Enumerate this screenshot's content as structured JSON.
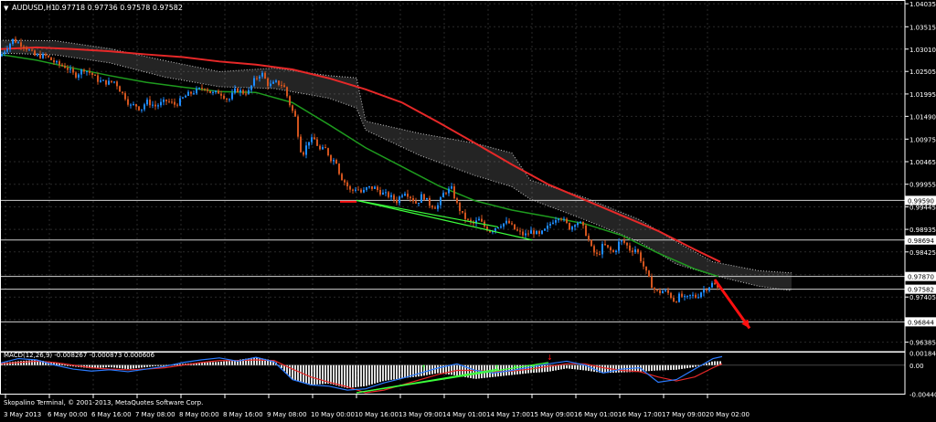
{
  "header": {
    "symbol": "AUDUSD,H1",
    "ohlc": "0.97718 0.97736 0.97578 0.97582"
  },
  "indicator_header": "MACD(12,26,9) -0.008267 -0.000873 0.000606",
  "copyright": "Skopalino Terminal, © 2001-2013, MetaQuotes Software Corp.",
  "colors": {
    "background": "#000000",
    "grid": "#2a2a2a",
    "axis_text": "#ffffff",
    "bull_candle": "#1e8cff",
    "bear_candle": "#d2541e",
    "ma_slow": "#e62828",
    "ma_fast": "#1e9b1e",
    "cloud": "#c8c8c8",
    "trendline": "#3cff3c",
    "forecast_arrow": "#ff1010",
    "macd_hist": "#dcdcdc",
    "macd_line": "#2b7bff",
    "signal_line": "#e62828"
  },
  "chart_data": [
    {
      "type": "candlestick",
      "title": "AUDUSD,H1",
      "y_ticks": [
        "1.04035",
        "1.03515",
        "1.03010",
        "1.02505",
        "1.01995",
        "1.01490",
        "1.00975",
        "1.00465",
        "0.99955",
        "0.99445",
        "0.98935",
        "0.98425",
        "0.97910",
        "0.97405",
        "0.96895",
        "0.96385"
      ],
      "ylim": [
        0.9617,
        1.0412
      ],
      "x_ticks": [
        "3 May 2013",
        "6 May 00:00",
        "6 May 16:00",
        "7 May 08:00",
        "8 May 00:00",
        "8 May 16:00",
        "9 May 08:00",
        "10 May 00:00",
        "10 May 16:00",
        "13 May 09:00",
        "14 May 01:00",
        "14 May 17:00",
        "15 May 09:00",
        "16 May 01:00",
        "16 May 17:00",
        "17 May 09:00",
        "20 May 02:00"
      ],
      "price_labels": [
        {
          "label": "0.99590",
          "value": 0.9959
        },
        {
          "label": "0.98694",
          "value": 0.98694
        },
        {
          "label": "0.97870",
          "value": 0.9787
        },
        {
          "label": "0.97582",
          "value": 0.97582
        },
        {
          "label": "0.96844",
          "value": 0.96844
        }
      ],
      "close_path": [
        [
          0,
          1.0285
        ],
        [
          14,
          1.0322
        ],
        [
          26,
          1.0309
        ],
        [
          38,
          1.0286
        ],
        [
          50,
          1.0285
        ],
        [
          62,
          1.0268
        ],
        [
          72,
          1.0261
        ],
        [
          82,
          1.0241
        ],
        [
          92,
          1.0256
        ],
        [
          100,
          1.0245
        ],
        [
          108,
          1.0229
        ],
        [
          118,
          1.0225
        ],
        [
          126,
          1.0228
        ],
        [
          132,
          1.0205
        ],
        [
          138,
          1.019
        ],
        [
          142,
          1.0172
        ],
        [
          148,
          1.0175
        ],
        [
          154,
          1.0164
        ],
        [
          160,
          1.0183
        ],
        [
          170,
          1.0172
        ],
        [
          182,
          1.0184
        ],
        [
          192,
          1.0175
        ],
        [
          204,
          1.0197
        ],
        [
          214,
          1.0206
        ],
        [
          224,
          1.0215
        ],
        [
          232,
          1.02
        ],
        [
          240,
          1.0204
        ],
        [
          250,
          1.0185
        ],
        [
          258,
          1.021
        ],
        [
          266,
          1.0203
        ],
        [
          272,
          1.0205
        ],
        [
          278,
          1.023
        ],
        [
          286,
          1.0248
        ],
        [
          294,
          1.0218
        ],
        [
          302,
          1.0225
        ],
        [
          310,
          1.022
        ],
        [
          318,
          1.017
        ],
        [
          324,
          1.0142
        ],
        [
          328,
          1.0076
        ],
        [
          332,
          1.0067
        ],
        [
          338,
          1.0095
        ],
        [
          344,
          1.0096
        ],
        [
          350,
          1.0073
        ],
        [
          356,
          1.0075
        ],
        [
          362,
          1.0053
        ],
        [
          368,
          1.0047
        ],
        [
          372,
          1.0015
        ],
        [
          378,
          0.9998
        ],
        [
          384,
          0.9978
        ],
        [
          390,
          0.9988
        ],
        [
          396,
          0.9975
        ],
        [
          402,
          0.9988
        ],
        [
          410,
          0.9987
        ],
        [
          418,
          0.9975
        ],
        [
          426,
          0.9969
        ],
        [
          434,
          0.9957
        ],
        [
          442,
          0.9981
        ],
        [
          450,
          0.9965
        ],
        [
          456,
          0.9951
        ],
        [
          462,
          0.9972
        ],
        [
          470,
          0.995
        ],
        [
          478,
          0.9943
        ],
        [
          486,
          0.9978
        ],
        [
          494,
          0.9985
        ],
        [
          500,
          0.995
        ],
        [
          506,
          0.9926
        ],
        [
          512,
          0.9912
        ],
        [
          518,
          0.9906
        ],
        [
          524,
          0.9915
        ],
        [
          530,
          0.99
        ],
        [
          536,
          0.989
        ],
        [
          542,
          0.9898
        ],
        [
          548,
          0.9905
        ],
        [
          556,
          0.991
        ],
        [
          562,
          0.9895
        ],
        [
          568,
          0.9886
        ],
        [
          574,
          0.988
        ],
        [
          582,
          0.989
        ],
        [
          590,
          0.988
        ],
        [
          598,
          0.9895
        ],
        [
          604,
          0.9912
        ],
        [
          612,
          0.9925
        ],
        [
          618,
          0.991
        ],
        [
          624,
          0.9895
        ],
        [
          630,
          0.9912
        ],
        [
          636,
          0.9905
        ],
        [
          642,
          0.988
        ],
        [
          648,
          0.9845
        ],
        [
          654,
          0.9833
        ],
        [
          660,
          0.986
        ],
        [
          666,
          0.9848
        ],
        [
          672,
          0.984
        ],
        [
          678,
          0.9868
        ],
        [
          684,
          0.9862
        ],
        [
          690,
          0.9845
        ],
        [
          696,
          0.985
        ],
        [
          702,
          0.982
        ],
        [
          708,
          0.979
        ],
        [
          714,
          0.9762
        ],
        [
          720,
          0.975
        ],
        [
          726,
          0.9755
        ],
        [
          732,
          0.9748
        ],
        [
          738,
          0.973
        ],
        [
          744,
          0.9745
        ],
        [
          750,
          0.9735
        ],
        [
          756,
          0.9745
        ],
        [
          762,
          0.974
        ],
        [
          768,
          0.9755
        ],
        [
          774,
          0.9762
        ],
        [
          780,
          0.9772
        ],
        [
          786,
          0.9758
        ]
      ],
      "ma_slow": [
        [
          0,
          1.0301
        ],
        [
          40,
          1.0305
        ],
        [
          80,
          1.0301
        ],
        [
          120,
          1.0296
        ],
        [
          160,
          1.0289
        ],
        [
          200,
          1.0283
        ],
        [
          240,
          1.0273
        ],
        [
          280,
          1.0266
        ],
        [
          320,
          1.0255
        ],
        [
          360,
          1.0235
        ],
        [
          400,
          1.021
        ],
        [
          440,
          1.018
        ],
        [
          480,
          1.0135
        ],
        [
          520,
          1.0088
        ],
        [
          560,
          1.004
        ],
        [
          600,
          0.9995
        ],
        [
          640,
          0.996
        ],
        [
          680,
          0.9925
        ],
        [
          720,
          0.989
        ],
        [
          760,
          0.9848
        ],
        [
          788,
          0.982
        ]
      ],
      "ma_fast": [
        [
          0,
          1.0289
        ],
        [
          40,
          1.0276
        ],
        [
          80,
          1.0258
        ],
        [
          120,
          1.0241
        ],
        [
          160,
          1.0226
        ],
        [
          200,
          1.0215
        ],
        [
          240,
          1.0205
        ],
        [
          280,
          1.0203
        ],
        [
          320,
          1.018
        ],
        [
          360,
          1.013
        ],
        [
          400,
          1.0078
        ],
        [
          440,
          1.0035
        ],
        [
          480,
          0.9992
        ],
        [
          520,
          0.9958
        ],
        [
          560,
          0.9937
        ],
        [
          600,
          0.9922
        ],
        [
          640,
          0.9906
        ],
        [
          680,
          0.988
        ],
        [
          720,
          0.984
        ],
        [
          760,
          0.9804
        ],
        [
          786,
          0.9787
        ]
      ],
      "cloud_upper": [
        [
          0,
          1.0321
        ],
        [
          60,
          1.032
        ],
        [
          120,
          1.0302
        ],
        [
          180,
          1.0275
        ],
        [
          240,
          1.025
        ],
        [
          300,
          1.0258
        ],
        [
          360,
          1.0241
        ],
        [
          390,
          1.0236
        ],
        [
          400,
          1.0138
        ],
        [
          460,
          1.011
        ],
        [
          520,
          1.0088
        ],
        [
          560,
          1.0066
        ],
        [
          580,
          1.0005
        ],
        [
          640,
          0.9965
        ],
        [
          700,
          0.9915
        ],
        [
          740,
          0.9865
        ],
        [
          780,
          0.982
        ],
        [
          830,
          0.98
        ],
        [
          866,
          0.9795
        ]
      ],
      "cloud_lower": [
        [
          0,
          1.0292
        ],
        [
          60,
          1.0288
        ],
        [
          120,
          1.027
        ],
        [
          180,
          1.0238
        ],
        [
          240,
          1.0216
        ],
        [
          300,
          1.0212
        ],
        [
          360,
          1.019
        ],
        [
          390,
          1.0168
        ],
        [
          400,
          1.0118
        ],
        [
          460,
          1.006
        ],
        [
          520,
          1.0015
        ],
        [
          560,
          0.999
        ],
        [
          580,
          0.9962
        ],
        [
          640,
          0.9915
        ],
        [
          700,
          0.9865
        ],
        [
          740,
          0.9815
        ],
        [
          780,
          0.979
        ],
        [
          830,
          0.9765
        ],
        [
          866,
          0.9755
        ]
      ],
      "trendlines": [
        [
          [
            390,
            0.9959
          ],
          [
            545,
            0.9899
          ]
        ],
        [
          [
            390,
            0.9959
          ],
          [
            582,
            0.98694
          ]
        ]
      ],
      "forecast_arrow": [
        [
          782,
          0.978
        ],
        [
          820,
          0.967
        ]
      ]
    },
    {
      "type": "macd",
      "title": "MACD(12,26,9)",
      "y_ticks": [
        "0.001846",
        "0.00",
        "-0.004405"
      ],
      "ylim": [
        -0.00448,
        0.00205
      ],
      "histogram": [
        [
          0,
          0.0003
        ],
        [
          20,
          0.0006
        ],
        [
          40,
          0.0008
        ],
        [
          60,
          0.0004
        ],
        [
          80,
          -0.0002
        ],
        [
          100,
          -0.0005
        ],
        [
          120,
          -0.0003
        ],
        [
          140,
          -0.0006
        ],
        [
          160,
          -0.0003
        ],
        [
          180,
          0.0
        ],
        [
          200,
          0.0002
        ],
        [
          220,
          0.0004
        ],
        [
          240,
          0.0005
        ],
        [
          260,
          0.0008
        ],
        [
          280,
          0.0012
        ],
        [
          300,
          0.0007
        ],
        [
          320,
          -0.0022
        ],
        [
          340,
          -0.003
        ],
        [
          360,
          -0.0028
        ],
        [
          380,
          -0.0035
        ],
        [
          400,
          -0.0032
        ],
        [
          420,
          -0.0024
        ],
        [
          440,
          -0.002
        ],
        [
          460,
          -0.0017
        ],
        [
          480,
          -0.0012
        ],
        [
          500,
          -0.0016
        ],
        [
          520,
          -0.0021
        ],
        [
          540,
          -0.0018
        ],
        [
          560,
          -0.0015
        ],
        [
          580,
          -0.0012
        ],
        [
          600,
          -0.001
        ],
        [
          620,
          -0.0005
        ],
        [
          640,
          -0.0008
        ],
        [
          660,
          -0.0012
        ],
        [
          680,
          -0.0011
        ],
        [
          700,
          -0.001
        ],
        [
          720,
          -0.0008
        ],
        [
          740,
          -0.0007
        ],
        [
          760,
          -0.0003
        ],
        [
          780,
          0.0006
        ],
        [
          790,
          0.0006
        ]
      ],
      "macd_line": [
        [
          0,
          0.0003
        ],
        [
          20,
          0.001
        ],
        [
          40,
          0.0008
        ],
        [
          60,
          0.0
        ],
        [
          80,
          -0.0006
        ],
        [
          100,
          -0.0009
        ],
        [
          120,
          -0.0007
        ],
        [
          140,
          -0.001
        ],
        [
          160,
          -0.0006
        ],
        [
          180,
          -0.0002
        ],
        [
          200,
          0.0004
        ],
        [
          220,
          0.0008
        ],
        [
          240,
          0.0011
        ],
        [
          260,
          0.0006
        ],
        [
          280,
          0.0012
        ],
        [
          300,
          0.0005
        ],
        [
          320,
          -0.0022
        ],
        [
          340,
          -0.003
        ],
        [
          360,
          -0.0032
        ],
        [
          380,
          -0.0038
        ],
        [
          400,
          -0.0036
        ],
        [
          420,
          -0.0027
        ],
        [
          440,
          -0.002
        ],
        [
          460,
          -0.0012
        ],
        [
          480,
          -0.0004
        ],
        [
          500,
          0.0002
        ],
        [
          520,
          -0.0008
        ],
        [
          540,
          -0.0012
        ],
        [
          560,
          -0.0008
        ],
        [
          580,
          -0.0003
        ],
        [
          600,
          0.0002
        ],
        [
          620,
          0.0006
        ],
        [
          640,
          0.0
        ],
        [
          660,
          -0.0012
        ],
        [
          680,
          -0.0006
        ],
        [
          700,
          -0.0004
        ],
        [
          720,
          -0.0026
        ],
        [
          740,
          -0.0022
        ],
        [
          760,
          -0.0006
        ],
        [
          780,
          0.001
        ],
        [
          790,
          0.0013
        ]
      ],
      "signal_line": [
        [
          0,
          0.0002
        ],
        [
          20,
          0.0004
        ],
        [
          40,
          0.0006
        ],
        [
          60,
          0.0004
        ],
        [
          80,
          0.0
        ],
        [
          100,
          -0.0004
        ],
        [
          120,
          -0.0006
        ],
        [
          140,
          -0.0007
        ],
        [
          160,
          -0.0006
        ],
        [
          180,
          -0.0004
        ],
        [
          200,
          0.0
        ],
        [
          220,
          0.0004
        ],
        [
          240,
          0.0007
        ],
        [
          260,
          0.0007
        ],
        [
          280,
          0.0008
        ],
        [
          300,
          0.0007
        ],
        [
          320,
          -0.0006
        ],
        [
          340,
          -0.0018
        ],
        [
          360,
          -0.0026
        ],
        [
          380,
          -0.0033
        ],
        [
          400,
          -0.0042
        ],
        [
          420,
          -0.0038
        ],
        [
          440,
          -0.003
        ],
        [
          460,
          -0.0022
        ],
        [
          480,
          -0.0014
        ],
        [
          500,
          -0.0008
        ],
        [
          520,
          -0.0008
        ],
        [
          540,
          -0.001
        ],
        [
          560,
          -0.0009
        ],
        [
          580,
          -0.0006
        ],
        [
          600,
          -0.0002
        ],
        [
          620,
          0.0002
        ],
        [
          640,
          0.0002
        ],
        [
          660,
          -0.0004
        ],
        [
          680,
          -0.0008
        ],
        [
          700,
          -0.001
        ],
        [
          720,
          -0.0018
        ],
        [
          740,
          -0.0024
        ],
        [
          760,
          -0.0018
        ],
        [
          780,
          -0.0004
        ],
        [
          790,
          0.0002
        ]
      ],
      "trendlines": [
        [
          [
            390,
            -0.0042
          ],
          [
            600,
            0.0004
          ]
        ],
        [
          [
            390,
            -0.0042
          ],
          [
            545,
            -0.0006
          ]
        ]
      ]
    }
  ]
}
